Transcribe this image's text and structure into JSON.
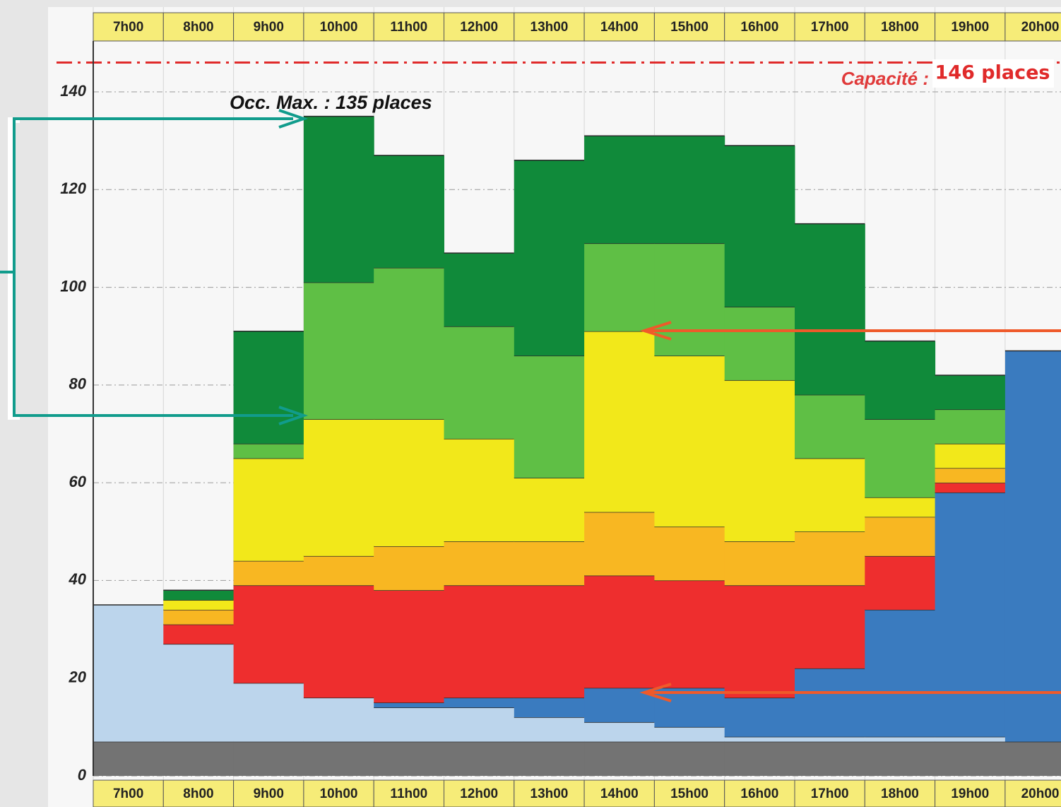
{
  "chart_data": {
    "type": "stacked_step",
    "categories": [
      "7h00",
      "8h00",
      "9h00",
      "10h00",
      "11h00",
      "12h00",
      "13h00",
      "14h00",
      "15h00",
      "16h00",
      "17h00",
      "18h00",
      "19h00",
      "20h00"
    ],
    "series": [
      {
        "color": "#737373",
        "values": [
          7,
          7,
          7,
          7,
          7,
          7,
          7,
          7,
          7,
          7,
          7,
          7,
          7,
          7
        ]
      },
      {
        "color": "#bcd5ec",
        "values": [
          28,
          20,
          12,
          9,
          7,
          7,
          5,
          4,
          3,
          1,
          1,
          1,
          1,
          0
        ]
      },
      {
        "color": "#3a7bbf",
        "values": [
          0,
          0,
          0,
          0,
          1,
          2,
          4,
          7,
          8,
          8,
          14,
          26,
          50,
          80
        ]
      },
      {
        "color": "#ee2e2e",
        "values": [
          0,
          4,
          20,
          23,
          23,
          23,
          23,
          23,
          22,
          23,
          17,
          11,
          2,
          0
        ]
      },
      {
        "color": "#f8b722",
        "values": [
          0,
          3,
          5,
          6,
          9,
          9,
          9,
          13,
          11,
          9,
          11,
          8,
          3,
          0
        ]
      },
      {
        "color": "#f2e81a",
        "values": [
          0,
          2,
          21,
          28,
          26,
          21,
          13,
          37,
          35,
          33,
          15,
          4,
          5,
          0
        ]
      },
      {
        "color": "#5fbf45",
        "values": [
          0,
          0,
          3,
          28,
          31,
          23,
          25,
          18,
          23,
          15,
          13,
          16,
          7,
          0
        ]
      },
      {
        "color": "#108a3a",
        "values": [
          0,
          2,
          23,
          34,
          23,
          15,
          40,
          22,
          22,
          33,
          35,
          16,
          7,
          0
        ]
      }
    ],
    "ylim": [
      0,
      140
    ],
    "yticks": [
      0,
      20,
      40,
      60,
      80,
      100,
      120,
      140
    ],
    "grid": true,
    "annotation": "Occ. Max. : 135 places",
    "capacity": {
      "value": 146,
      "label": "146 places",
      "prefix": "Capacité :"
    }
  }
}
